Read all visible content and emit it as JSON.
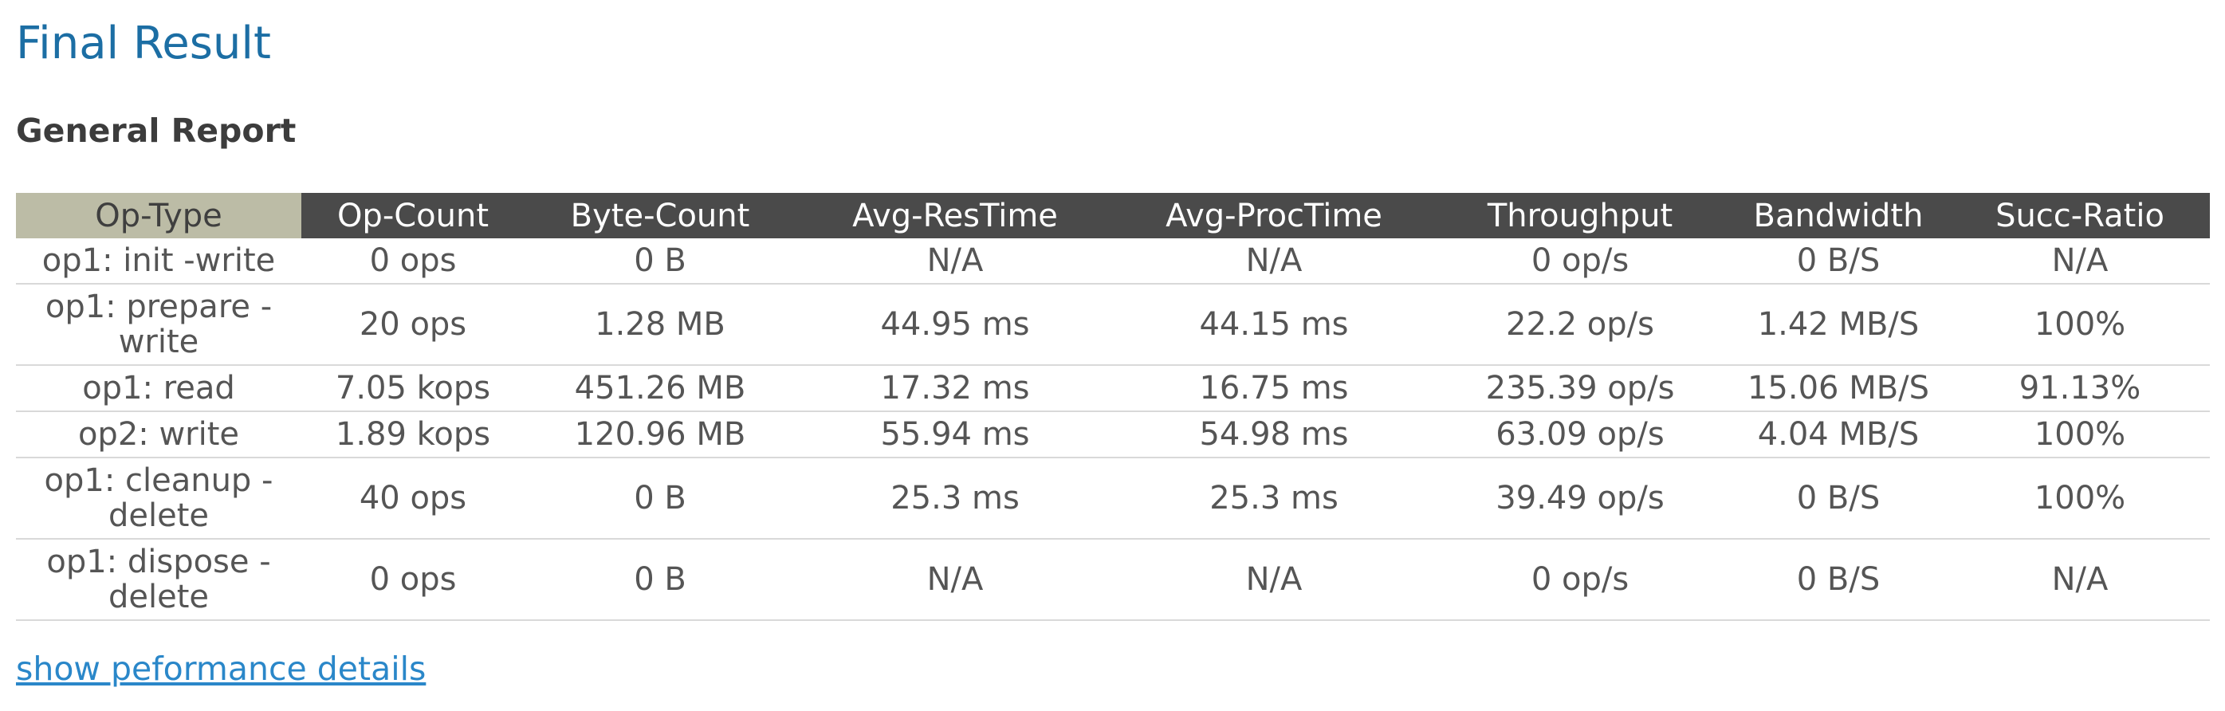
{
  "page": {
    "title": "Final Result",
    "subtitle": "General Report",
    "details_link": "show peformance details"
  },
  "table": {
    "headers": [
      "Op-Type",
      "Op-Count",
      "Byte-Count",
      "Avg-ResTime",
      "Avg-ProcTime",
      "Throughput",
      "Bandwidth",
      "Succ-Ratio"
    ],
    "rows": [
      [
        "op1: init -write",
        "0 ops",
        "0 B",
        "N/A",
        "N/A",
        "0 op/s",
        "0 B/S",
        "N/A"
      ],
      [
        "op1: prepare -write",
        "20 ops",
        "1.28 MB",
        "44.95 ms",
        "44.15 ms",
        "22.2 op/s",
        "1.42 MB/S",
        "100%"
      ],
      [
        "op1: read",
        "7.05 kops",
        "451.26 MB",
        "17.32 ms",
        "16.75 ms",
        "235.39 op/s",
        "15.06 MB/S",
        "91.13%"
      ],
      [
        "op2: write",
        "1.89 kops",
        "120.96 MB",
        "55.94 ms",
        "54.98 ms",
        "63.09 op/s",
        "4.04 MB/S",
        "100%"
      ],
      [
        "op1: cleanup -delete",
        "40 ops",
        "0 B",
        "25.3 ms",
        "25.3 ms",
        "39.49 op/s",
        "0 B/S",
        "100%"
      ],
      [
        "op1: dispose -delete",
        "0 ops",
        "0 B",
        "N/A",
        "N/A",
        "0 op/s",
        "0 B/S",
        "N/A"
      ]
    ]
  },
  "colors": {
    "title": "#1c6ea4",
    "header_bg": "#4a4a4a",
    "optype_header_bg": "#bcbca6",
    "link": "#2a87c9"
  }
}
